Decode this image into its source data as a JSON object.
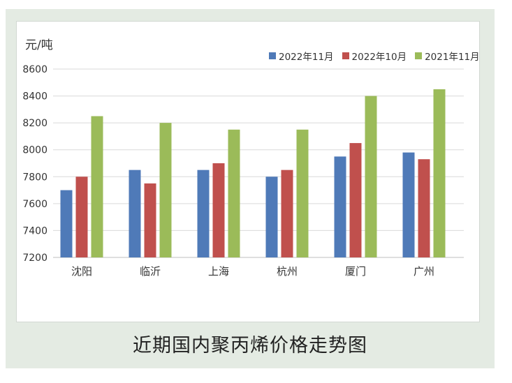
{
  "caption": "近期国内聚丙烯价格走势图",
  "chart_data": {
    "type": "bar",
    "title": "近期国内聚丙烯价格走势图",
    "ylabel": "元/吨",
    "xlabel": "",
    "ylim": [
      7200,
      8600
    ],
    "ytick_step": 200,
    "grid": true,
    "legend_position": "top-right",
    "categories": [
      "沈阳",
      "临沂",
      "上海",
      "杭州",
      "厦门",
      "广州"
    ],
    "series": [
      {
        "name": "2022年11月",
        "color": "#4f7ab8",
        "values": [
          7700,
          7850,
          7850,
          7800,
          7950,
          7980
        ]
      },
      {
        "name": "2022年10月",
        "color": "#c0504d",
        "values": [
          7800,
          7750,
          7900,
          7850,
          8050,
          7930
        ]
      },
      {
        "name": "2021年11月",
        "color": "#9bbb59",
        "values": [
          8250,
          8200,
          8150,
          8150,
          8400,
          8450
        ]
      }
    ]
  }
}
